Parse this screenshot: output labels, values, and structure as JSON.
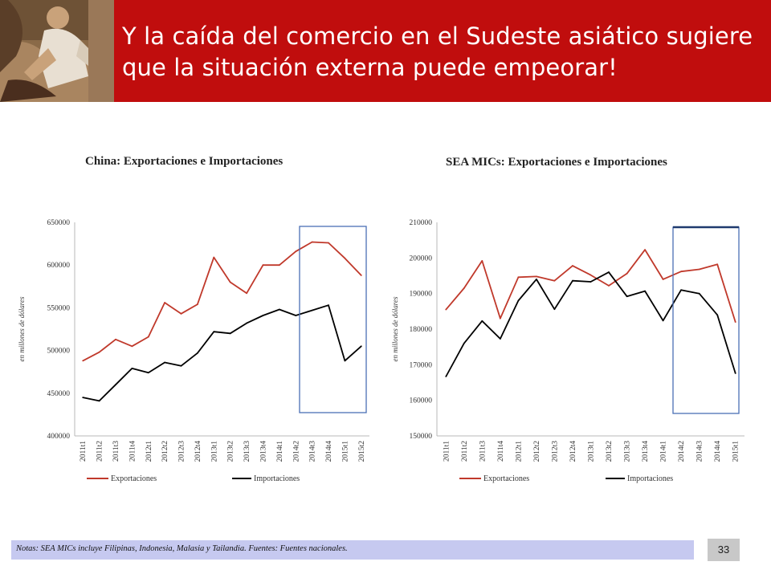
{
  "header": {
    "title": "Y la caída del comercio en el Sudeste asiático sugiere que la situación externa puede empeorar!"
  },
  "colors": {
    "header_bg": "#c00d0d",
    "exports": "#c0392b",
    "imports": "#000000",
    "highlight_box_1": "#4a6fb5",
    "highlight_box_2": "#1f3a6e"
  },
  "chart_data": [
    {
      "type": "line",
      "title": "China: Exportaciones e Importaciones",
      "ylabel": "en millones de dólares",
      "xlabel": "",
      "ylim": [
        400000,
        650000
      ],
      "yticks": [
        "650000",
        "600000",
        "550000",
        "500000",
        "450000",
        "400000"
      ],
      "x": [
        "2011t1",
        "2011t2",
        "2011t3",
        "2011t4",
        "2012t1",
        "2012t2",
        "2012t3",
        "2012t4",
        "2013t1",
        "2013t2",
        "2013t3",
        "2013t4",
        "2014t1",
        "2014t2",
        "2014t3",
        "2014t4",
        "2015t1",
        "2015t2"
      ],
      "series": [
        {
          "name": "Exportaciones",
          "values": [
            488000,
            498000,
            513000,
            505000,
            516000,
            556000,
            543000,
            554000,
            609000,
            580000,
            567000,
            600000,
            600000,
            616000,
            627000,
            626000,
            608000,
            588000
          ]
        },
        {
          "name": "Importaciones",
          "values": [
            445000,
            441000,
            460000,
            479000,
            474000,
            486000,
            482000,
            497000,
            522000,
            520000,
            532000,
            541000,
            548000,
            541000,
            547000,
            553000,
            488000,
            505000
          ]
        }
      ],
      "highlight_from": "2014t2",
      "legend": "bottom",
      "grid": false
    },
    {
      "type": "line",
      "title": "SEA MICs: Exportaciones e Importaciones",
      "ylabel": "en millones de dólares",
      "xlabel": "",
      "ylim": [
        150000,
        210000
      ],
      "yticks": [
        "210000",
        "200000",
        "190000",
        "180000",
        "170000",
        "160000",
        "150000"
      ],
      "x": [
        "2011t1",
        "2011t2",
        "2011t3",
        "2011t4",
        "2012t1",
        "2012t2",
        "2012t3",
        "2012t4",
        "2013t1",
        "2013t2",
        "2013t3",
        "2013t4",
        "2014t1",
        "2014t2",
        "2014t3",
        "2014t4",
        "2015t1"
      ],
      "series": [
        {
          "name": "Exportaciones",
          "values": [
            185500,
            191500,
            199200,
            183000,
            194600,
            194800,
            193600,
            197800,
            195200,
            192200,
            195600,
            202300,
            194000,
            196200,
            196800,
            198200,
            182000
          ]
        },
        {
          "name": "Importaciones",
          "values": [
            166700,
            176000,
            182300,
            177300,
            188000,
            194000,
            185600,
            193600,
            193300,
            196000,
            189200,
            190700,
            182400,
            191000,
            190000,
            184000,
            167600
          ]
        }
      ],
      "highlight_from": "2014t2",
      "legend": "bottom",
      "grid": false
    }
  ],
  "footer": {
    "notes": "Notas: SEA MICs incluye Filipinas, Indonesia, Malasia y Tailandia. Fuentes: Fuentes nacionales.",
    "page_number": "33"
  }
}
